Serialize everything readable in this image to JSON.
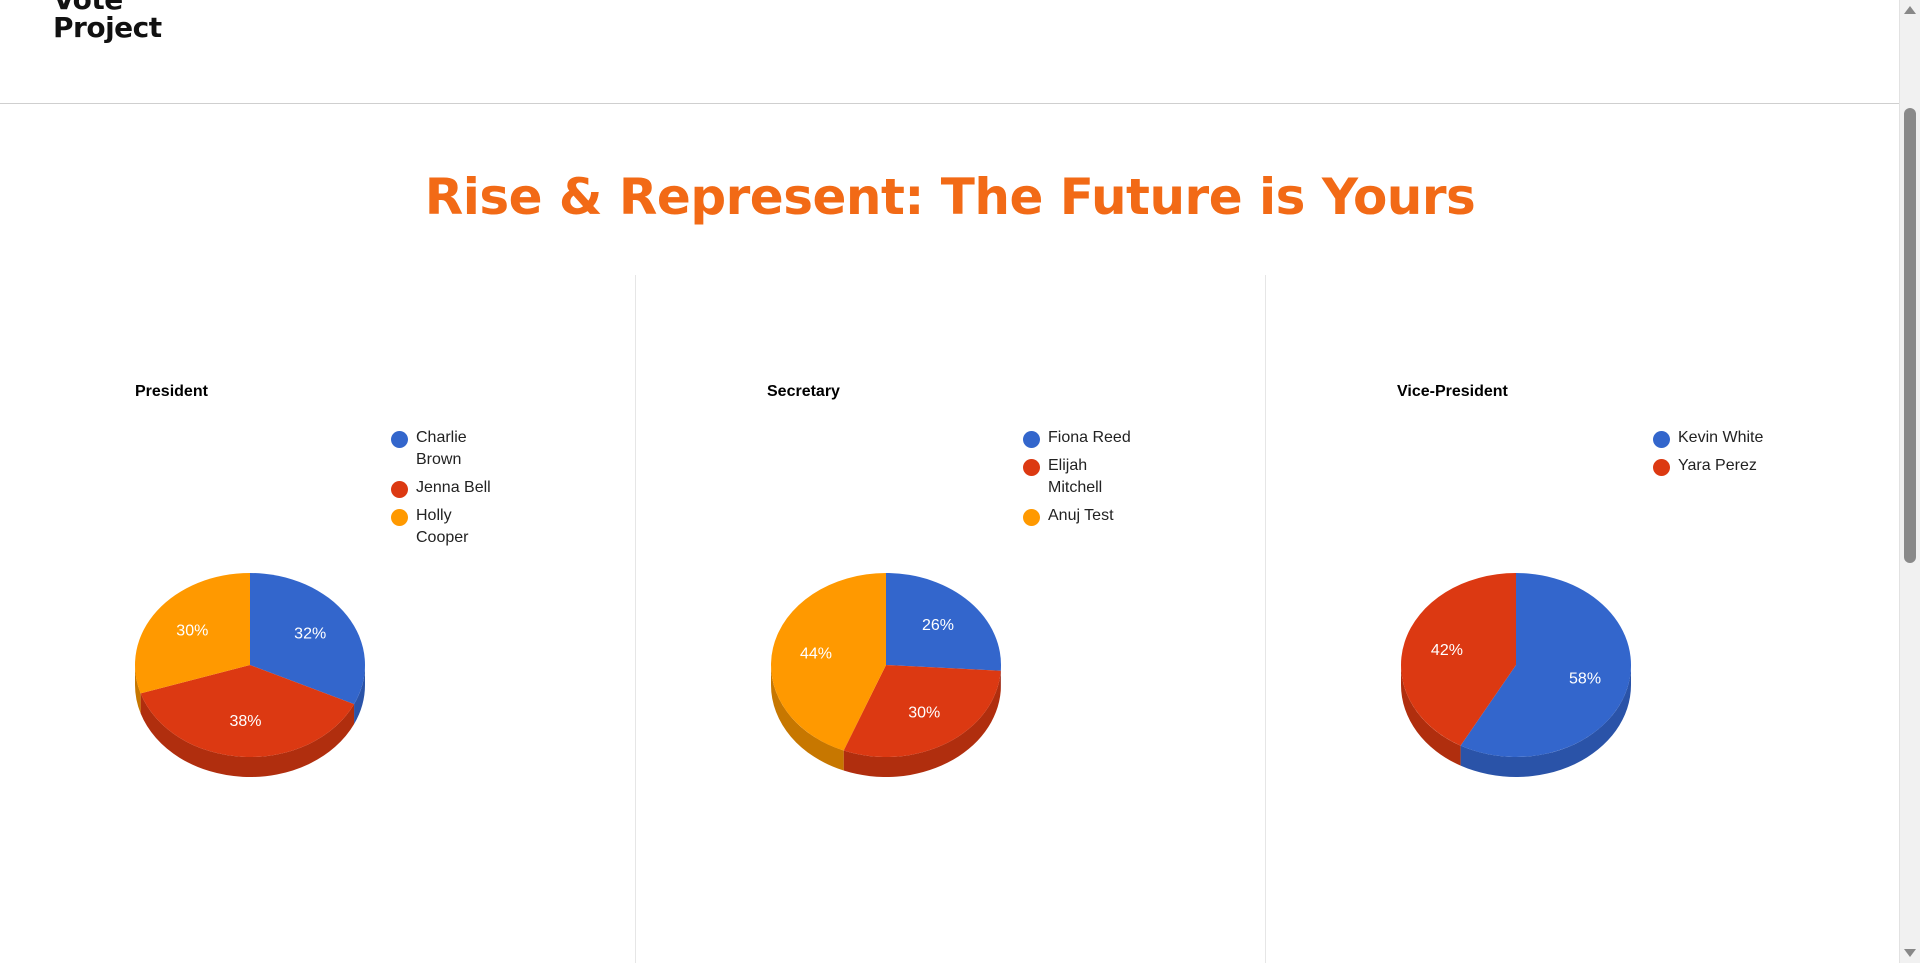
{
  "header": {
    "logo_lines": [
      "Vote",
      "Project"
    ]
  },
  "page_title": "Rise & Represent: The Future is Yours",
  "colors": {
    "accent": "#f26a16",
    "series": [
      "#3366cc",
      "#dc3912",
      "#ff9900"
    ],
    "series_dark": [
      "#2a53a8",
      "#b02e0e",
      "#c77700"
    ]
  },
  "chart_data": [
    {
      "type": "pie",
      "title": "President",
      "labels": [
        "Charlie Brown",
        "Jenna Bell",
        "Holly Cooper"
      ],
      "values": [
        32,
        38,
        30
      ],
      "value_labels": [
        "32%",
        "38%",
        "30%"
      ]
    },
    {
      "type": "pie",
      "title": "Secretary",
      "labels": [
        "Fiona Reed",
        "Elijah Mitchell",
        "Anuj Test"
      ],
      "values": [
        26,
        30,
        44
      ],
      "value_labels": [
        "26%",
        "30%",
        "44%"
      ]
    },
    {
      "type": "pie",
      "title": "Vice-President",
      "labels": [
        "Kevin White",
        "Yara Perez"
      ],
      "values": [
        58,
        42
      ],
      "value_labels": [
        "58%",
        "42%"
      ]
    }
  ]
}
